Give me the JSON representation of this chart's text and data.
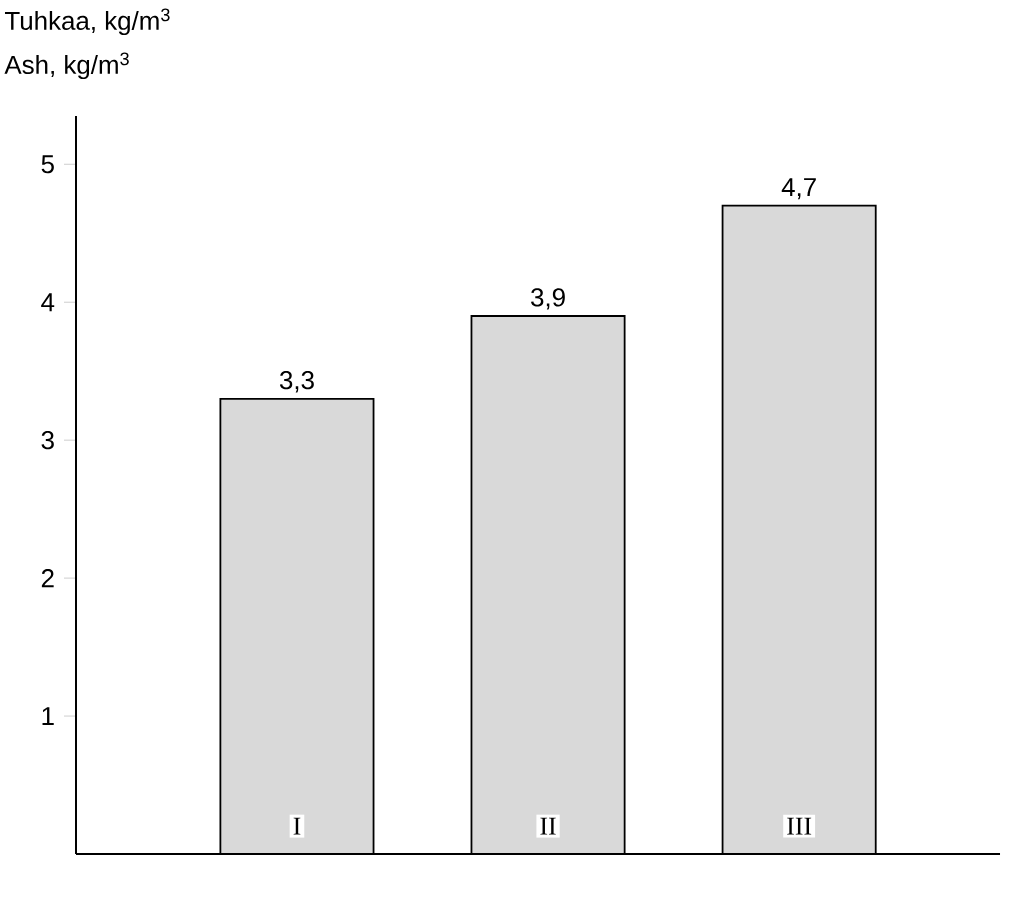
{
  "chart_data": {
    "type": "bar",
    "ylabel": "Tuhkaa, kg/m$^{3}$",
    "annotations": [
      "Ash, kg/m$^{3}$"
    ],
    "categories": [
      "I",
      "II",
      "III"
    ],
    "values": [
      3.3,
      3.9,
      4.7
    ],
    "value_labels": [
      "3,3",
      "3,9",
      "4,7"
    ],
    "color": "#d9d9d9",
    "ylim": [
      0,
      5.35
    ],
    "yticks": [
      1,
      2,
      3,
      4,
      5
    ]
  }
}
